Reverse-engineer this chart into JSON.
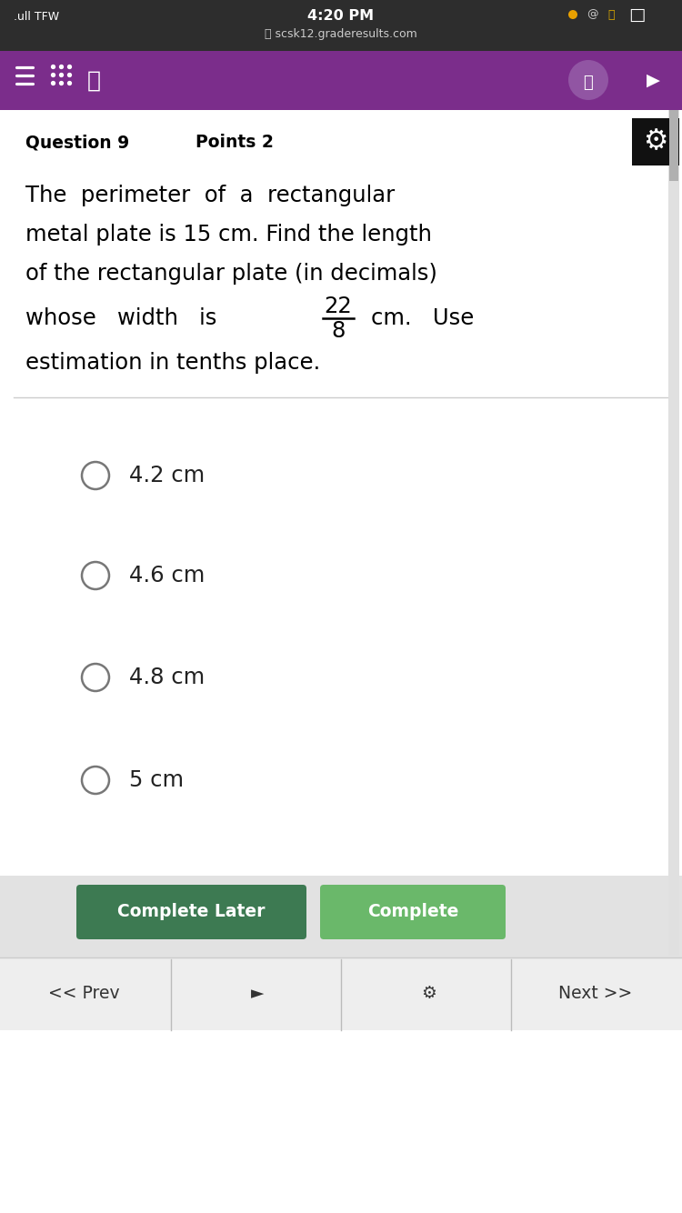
{
  "status_bar_bg": "#2d2d2d",
  "nav_bar_bg": "#7B2D8B",
  "question_label": "Question 9",
  "points_label": "Points 2",
  "q_line1": "The  perimeter  of  a  rectangular",
  "q_line2": "metal plate is 15 cm. Find the length",
  "q_line3": "of the rectangular plate (in decimals)",
  "q_line4_pre": "whose   width   is",
  "fraction_num": "22",
  "fraction_den": "8",
  "q_line4_post": "cm.   Use",
  "q_line5": "estimation in tenths place.",
  "options": [
    "4.2 cm",
    "4.6 cm",
    "4.8 cm",
    "5 cm"
  ],
  "btn1_text": "Complete Later",
  "btn2_text": "Complete",
  "btn1_bg": "#3d7a52",
  "btn2_bg": "#6ab86a",
  "bg_color": "#ffffff",
  "separator_color": "#cccccc",
  "option_text_color": "#222222",
  "radio_color": "#777777",
  "bottom_bar_bg": "#eeeeee",
  "status_text": "4:20 PM",
  "url_text": "scsk12.graderesults.com",
  "signal_text": ".ull TFW",
  "nav_prev": "<< Prev",
  "nav_next": "Next >>",
  "nav_bar_person_bg": "#9155a3",
  "gear_bg": "#111111"
}
